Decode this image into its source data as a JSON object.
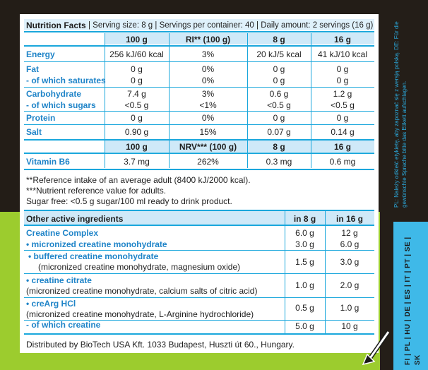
{
  "header": {
    "title": "Nutrition Facts",
    "serving": "| Serving size: 8 g | Servings per container: 40 | Daily amount: 2 servings (16 g)"
  },
  "table1": {
    "columns": [
      "100 g",
      "RI** (100 g)",
      "8 g",
      "16 g"
    ],
    "rows": [
      {
        "label": "Energy",
        "v": [
          "256 kJ/60 kcal",
          "3%",
          "20 kJ/5 kcal",
          "41 kJ/10 kcal"
        ]
      },
      {
        "label": "Fat",
        "v": [
          "0 g",
          "0%",
          "0 g",
          "0 g"
        ]
      },
      {
        "label": "- of which saturates",
        "v": [
          "0 g",
          "0%",
          "0 g",
          "0 g"
        ]
      },
      {
        "label": "Carbohydrate",
        "v": [
          "7.4 g",
          "3%",
          "0.6 g",
          "1.2 g"
        ]
      },
      {
        "label": "- of which sugars",
        "v": [
          "<0.5 g",
          "<1%",
          "<0.5 g",
          "<0.5 g"
        ]
      },
      {
        "label": "Protein",
        "v": [
          "0 g",
          "0%",
          "0 g",
          "0 g"
        ]
      },
      {
        "label": "Salt",
        "v": [
          "0.90 g",
          "15%",
          "0.07 g",
          "0.14 g"
        ]
      }
    ]
  },
  "table2": {
    "columns": [
      "100 g",
      "NRV*** (100 g)",
      "8 g",
      "16 g"
    ],
    "row": {
      "label": "Vitamin B6",
      "v": [
        "3.7 mg",
        "262%",
        "0.3 mg",
        "0.6 mg"
      ]
    }
  },
  "notes": [
    "**Reference intake of an average adult (8400 kJ/2000 kcal).",
    "***Nutrient reference value for adults.",
    "Sugar free: <0.5 g sugar/100 ml ready to drink product."
  ],
  "active": {
    "header": "Other active ingredients",
    "col1": "in 8 g",
    "col2": "in 16 g",
    "creatine_complex": {
      "label": "Creatine Complex",
      "v1": "6.0 g",
      "v2": "12 g"
    },
    "micronized": {
      "label": "• micronized creatine monohydrate",
      "v1": "3.0 g",
      "v2": "6.0 g"
    },
    "buffered": {
      "label": "• buffered creatine monohydrate",
      "sub": "(micronized creatine monohydrate, magnesium oxide)",
      "v1": "1.5 g",
      "v2": "3.0 g"
    },
    "citrate": {
      "label": "• creatine citrate",
      "sub": "(micronized creatine monohydrate, calcium salts of citric acid)",
      "v1": "1.0 g",
      "v2": "2.0 g"
    },
    "creaarg": {
      "label": "• creArg HCl",
      "sub": "(micronized creatine monohydrate, L-Arginine hydrochloride)",
      "v1": "0.5 g",
      "v2": "1.0 g"
    },
    "of_which": {
      "label": "- of which creatine",
      "v1": "5.0 g",
      "v2": "10 g"
    }
  },
  "footer": "Distributed by BioTech USA Kft. 1033 Budapest, Huszti út 60., Hungary.",
  "side_warning": "PL: Należy odkleić etykietę, aby zapoznać się z wersją polską. DE: Für die gewünschte Sprache bitte das Etikett aufschlagen.",
  "languages": "FI | PL | HU | DE | ES | IT | PT | SE | SK",
  "colors": {
    "accent": "#1aa7dc",
    "label_blue": "#1f84c8",
    "green": "#9ccc2e"
  }
}
